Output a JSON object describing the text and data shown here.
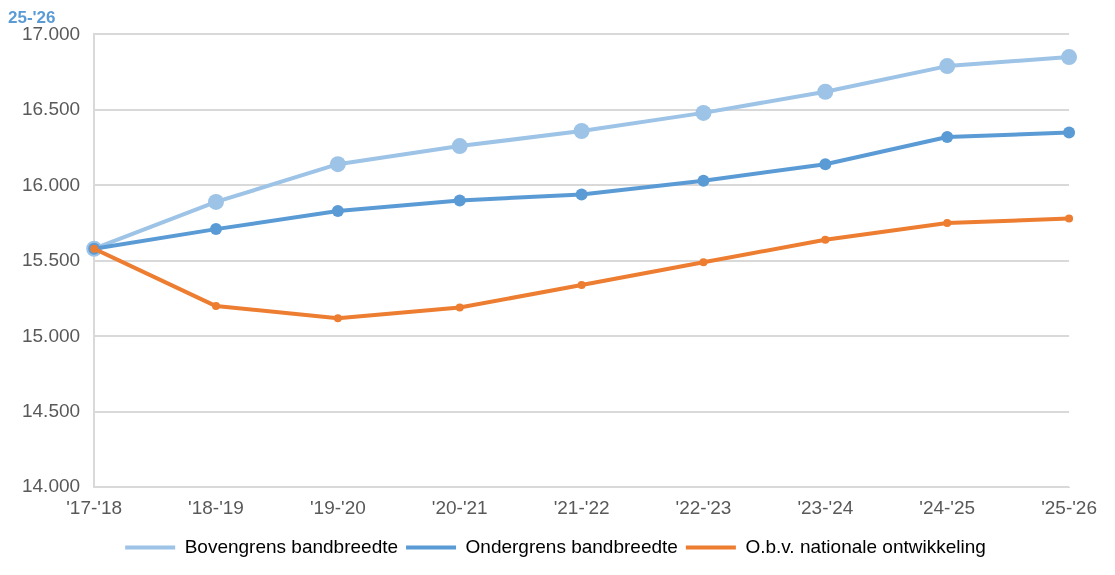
{
  "chart_data": {
    "type": "line",
    "title": "25-'26",
    "categories": [
      "'17-'18",
      "'18-'19",
      "'19-'20",
      "'20-'21",
      "'21-'22",
      "'22-'23",
      "'23-'24",
      "'24-'25",
      "'25-'26"
    ],
    "series": [
      {
        "name": "Bovengrens bandbreedte",
        "color": "#9dc3e6",
        "values": [
          15580,
          15890,
          16140,
          16260,
          16360,
          16480,
          16620,
          16790,
          16850
        ]
      },
      {
        "name": "Ondergrens bandbreedte",
        "color": "#5b9bd5",
        "values": [
          15580,
          15710,
          15830,
          15900,
          15940,
          16030,
          16140,
          16320,
          16350
        ]
      },
      {
        "name": "O.b.v. nationale ontwikkeling",
        "color": "#ed7d31",
        "values": [
          15580,
          15200,
          15120,
          15190,
          15340,
          15490,
          15640,
          15750,
          15780
        ]
      }
    ],
    "ylim": [
      14000,
      17000
    ],
    "yticks": [
      {
        "value": 14000,
        "label": "14.000"
      },
      {
        "value": 14500,
        "label": "14.500"
      },
      {
        "value": 15000,
        "label": "15.000"
      },
      {
        "value": 15500,
        "label": "15.500"
      },
      {
        "value": 16000,
        "label": "16.000"
      },
      {
        "value": 16500,
        "label": "16.500"
      },
      {
        "value": 17000,
        "label": "17.000"
      }
    ],
    "grid": "y",
    "legend": "bottom",
    "marker": "circle",
    "line_style": "solid"
  }
}
